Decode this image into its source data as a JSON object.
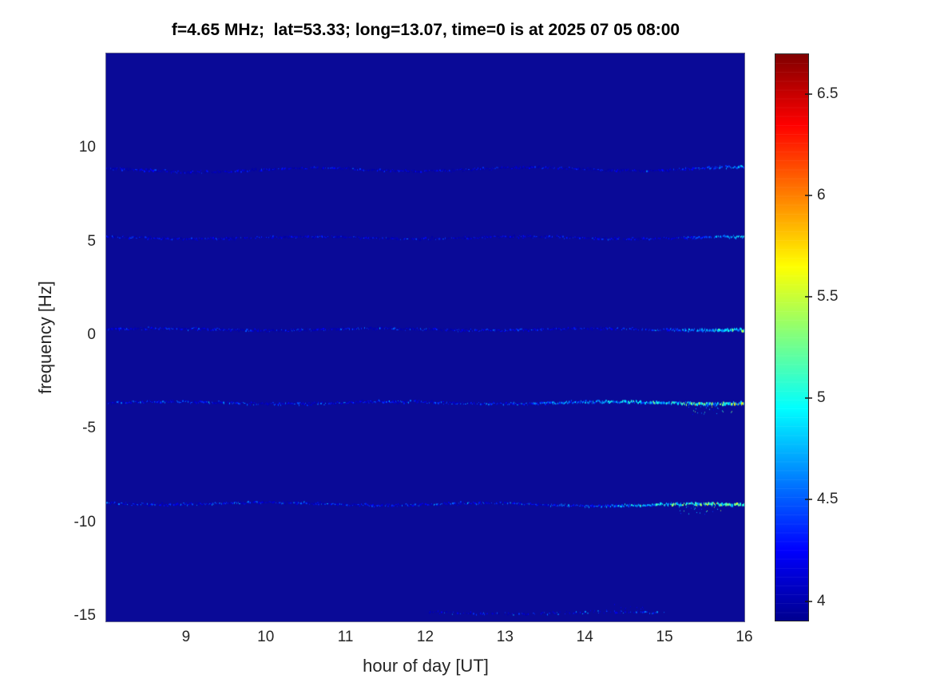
{
  "title": "f=4.65 MHz;  lat=53.33; long=13.07, time=0 is at 2025 07 05 08:00",
  "axes": {
    "xlabel": "hour of day [UT]",
    "ylabel": "frequency [Hz]",
    "x_ticks": [
      9,
      10,
      11,
      12,
      13,
      14,
      15,
      16
    ],
    "y_ticks": [
      10,
      5,
      0,
      -5,
      -10,
      -15
    ],
    "x_range": [
      8,
      16
    ],
    "y_range": [
      -15.3,
      15.05
    ]
  },
  "colorbar": {
    "ticks": [
      6.5,
      6,
      5.5,
      5,
      4.5,
      4
    ],
    "range": [
      3.9,
      6.7
    ],
    "colormap_name": "jet",
    "colormap": [
      [
        0.0,
        "#00008f"
      ],
      [
        0.125,
        "#0000ff"
      ],
      [
        0.375,
        "#00ffff"
      ],
      [
        0.625,
        "#ffff00"
      ],
      [
        0.875,
        "#ff0000"
      ],
      [
        1.0,
        "#800000"
      ]
    ]
  },
  "chart_data": {
    "type": "heatmap",
    "title": "f=4.65 MHz;  lat=53.33; long=13.07, time=0 is at 2025 07 05 08:00",
    "xlabel": "hour of day [UT]",
    "ylabel": "frequency [Hz]",
    "x_range": [
      8,
      16
    ],
    "y_range": [
      -15.3,
      15.05
    ],
    "value_range": [
      3.9,
      6.7
    ],
    "background_value": 3.95,
    "background_color": "#0a0a97",
    "grid": false,
    "legend": "colorbar-right",
    "lines": [
      {
        "name": "doppler-line-plus8.8Hz",
        "freq": 8.8,
        "hours": [
          8.0,
          16.0
        ],
        "drift": 0.1,
        "wobble": 0.1,
        "base": [
          3.98,
          4.45
        ],
        "density": 0.82,
        "bright": {
          "from": 15.0,
          "range": [
            4.5,
            5.05
          ],
          "thickness": 2
        },
        "description": "faint trace near +8.8 Hz across whole interval, weak cyan flecks after 15:00"
      },
      {
        "name": "doppler-line-plus5.2Hz",
        "freq": 5.2,
        "hours": [
          8.0,
          16.0
        ],
        "drift": 0.0,
        "wobble": 0.06,
        "base": [
          3.98,
          4.5
        ],
        "density": 0.8,
        "bright": {
          "from": 15.1,
          "range": [
            4.7,
            5.35
          ],
          "thickness": 3
        },
        "description": "faint trace at +5.2 Hz, brightens to cyan-green at 15:30-16:00"
      },
      {
        "name": "doppler-line-plus0.3Hz",
        "freq": 0.3,
        "hours": [
          8.0,
          16.0
        ],
        "drift": 0.0,
        "wobble": 0.05,
        "base": [
          4.0,
          4.55
        ],
        "density": 0.9,
        "bright": {
          "from": 14.7,
          "range": [
            4.8,
            5.75
          ],
          "thickness": 4
        },
        "description": "carrier line near 0 Hz, strong cyan-green after 14:45"
      },
      {
        "name": "doppler-line-minus3.6Hz",
        "freq": -3.62,
        "hours": [
          8.0,
          16.0
        ],
        "drift": 0.0,
        "wobble": 0.06,
        "base": [
          4.02,
          4.65
        ],
        "density": 0.92,
        "bright": {
          "from": 12.6,
          "range": [
            4.7,
            6.15
          ],
          "thickness": 4
        },
        "spread": {
          "hours": [
            15.25,
            15.85
          ],
          "dir": "down",
          "dpx": 11,
          "p": 0.55
        },
        "description": "line at -3.6 Hz, gradually brightens from ~12:30, green-yellow-orange by 15:00-16:00"
      },
      {
        "name": "doppler-line-minus9Hz",
        "freq": -8.98,
        "hours": [
          8.0,
          16.0
        ],
        "drift": -0.12,
        "wobble": 0.07,
        "base": [
          4.02,
          4.7
        ],
        "density": 0.92,
        "bright": {
          "from": 13.6,
          "range": [
            4.9,
            6.3
          ],
          "thickness": 4
        },
        "spread": {
          "hours": [
            15.15,
            15.7
          ],
          "dir": "down",
          "dpx": 13,
          "p": 0.5
        },
        "description": "line at -9 Hz, brightest trace, green-yellow-red speckles 14:00-16:00"
      },
      {
        "name": "doppler-line-minus15Hz",
        "freq": -14.85,
        "hours": [
          12.05,
          15.0
        ],
        "drift": 0.0,
        "wobble": 0.05,
        "base": [
          3.98,
          4.7
        ],
        "density": 0.45,
        "bright": {
          "from": 13.9,
          "range": [
            4.5,
            5.35
          ],
          "thickness": 2
        },
        "spread": {
          "hours": [
            14.25,
            14.75
          ],
          "dir": "up",
          "dpx": 9,
          "p": 0.4
        },
        "description": "faint intermittent trace at bottom edge (-15 Hz) between 12:00 and 15:00 with bright cyan spot near 14:10"
      }
    ]
  }
}
